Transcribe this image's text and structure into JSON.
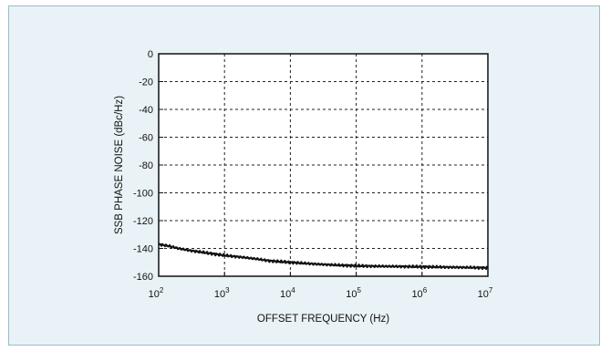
{
  "colors": {
    "panel_background": "#e9f2f6",
    "panel_border": "#9bbcc9",
    "plot_background": "#ffffff",
    "axis_color": "#111111",
    "grid_color": "#222222",
    "trace_color": "#111111"
  },
  "chart_data": {
    "type": "line",
    "title": "",
    "xlabel": "OFFSET FREQUENCY (Hz)",
    "ylabel": "SSB PHASE NOISE (dBc/Hz)",
    "xscale": "log",
    "xlim": [
      100,
      10000000
    ],
    "ylim": [
      -160,
      0
    ],
    "grid": true,
    "legend": "none",
    "x_ticks": [
      {
        "value": 100,
        "base": "10",
        "exp": "2"
      },
      {
        "value": 1000,
        "base": "10",
        "exp": "3"
      },
      {
        "value": 10000,
        "base": "10",
        "exp": "4"
      },
      {
        "value": 100000,
        "base": "10",
        "exp": "5"
      },
      {
        "value": 1000000,
        "base": "10",
        "exp": "6"
      },
      {
        "value": 10000000,
        "base": "10",
        "exp": "7"
      }
    ],
    "y_ticks": [
      {
        "value": 0,
        "label": "0"
      },
      {
        "value": -20,
        "label": "-20"
      },
      {
        "value": -40,
        "label": "-40"
      },
      {
        "value": -60,
        "label": "-60"
      },
      {
        "value": -80,
        "label": "-80"
      },
      {
        "value": -100,
        "label": "-100"
      },
      {
        "value": -120,
        "label": "-120"
      },
      {
        "value": -140,
        "label": "-140"
      },
      {
        "value": -160,
        "label": "-160"
      }
    ],
    "series": [
      {
        "x": [
          100,
          150,
          200,
          300,
          500,
          700,
          1000,
          2000,
          3000,
          5000,
          10000,
          20000,
          50000,
          100000,
          200000,
          500000,
          1000000,
          2000000,
          5000000,
          10000000
        ],
        "y": [
          -137,
          -138.5,
          -140,
          -141.5,
          -143,
          -144,
          -145,
          -146.5,
          -147.5,
          -149,
          -150,
          -151,
          -152,
          -152.5,
          -152.8,
          -153,
          -153.2,
          -153.4,
          -153.7,
          -154
        ]
      }
    ]
  }
}
